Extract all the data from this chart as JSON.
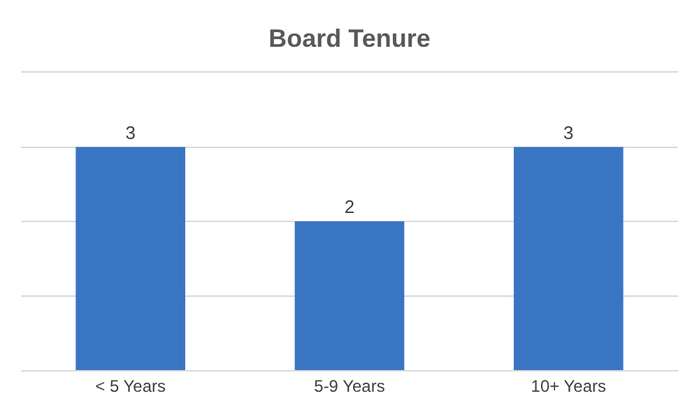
{
  "chart_data": {
    "type": "bar",
    "title": "Board Tenure",
    "categories": [
      "< 5 Years",
      "5-9 Years",
      "10+ Years"
    ],
    "values": [
      3,
      2,
      3
    ],
    "color": "#3a75c4",
    "ylim": [
      0,
      4
    ],
    "grid": "y",
    "data_labels": true,
    "tick_labels": "x"
  }
}
